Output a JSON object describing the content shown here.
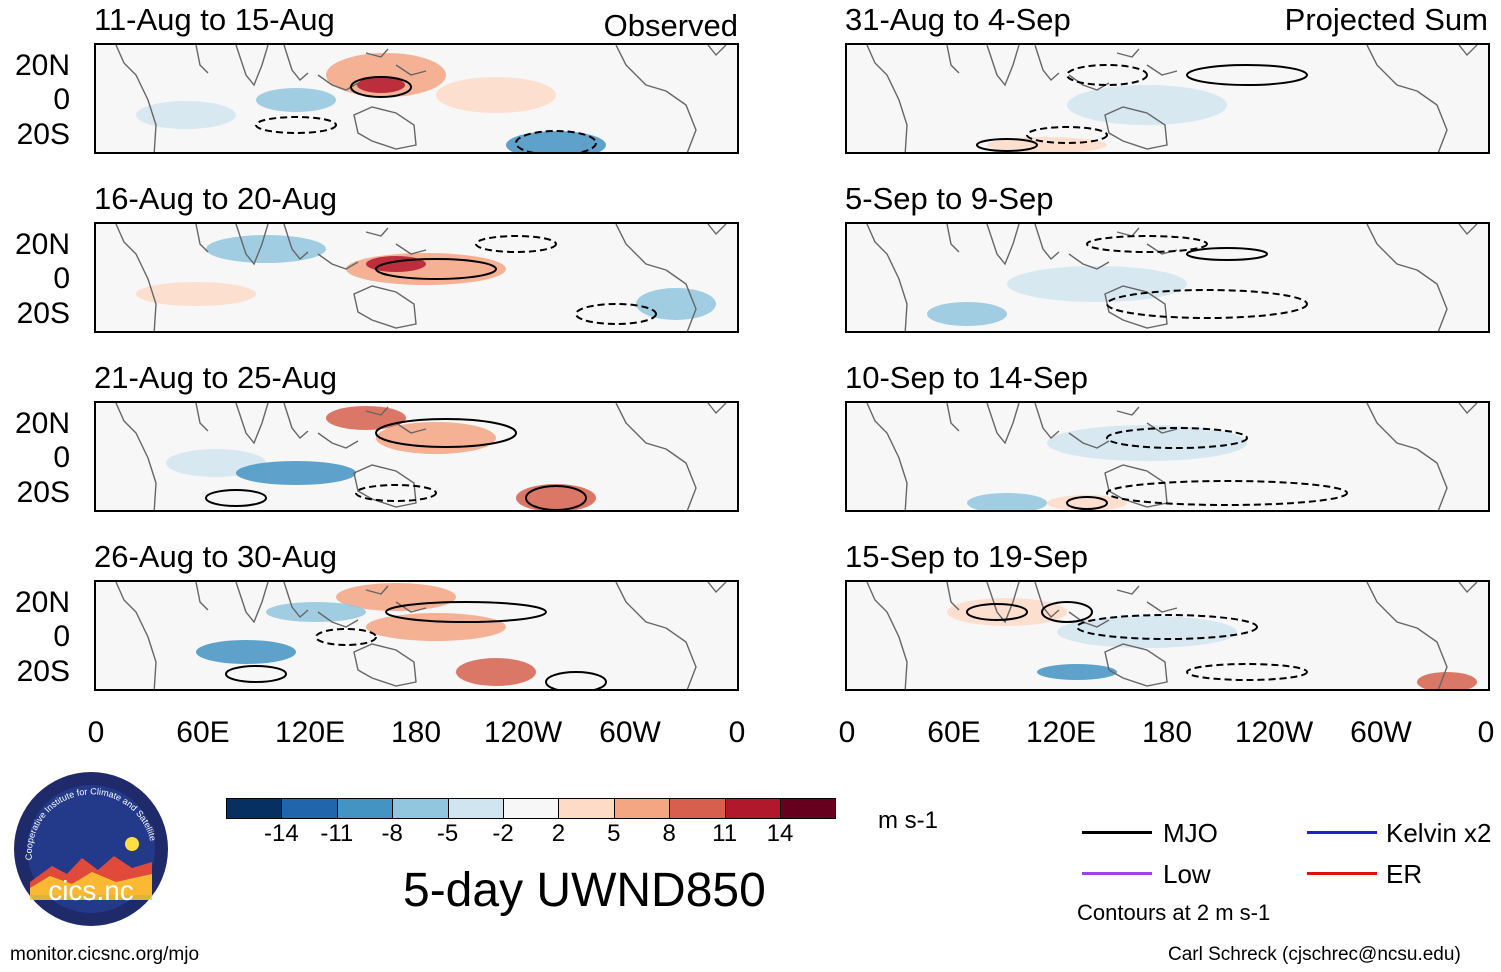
{
  "figure": {
    "title": "5-day UWND850",
    "units": "m s-1",
    "observed_label": "Observed",
    "projected_label": "Projected Sum",
    "contour_note": "Contours at 2 m s-1",
    "website": "monitor.cicsnc.org/mjo",
    "author": "Carl Schreck (cjschrec@ncsu.edu)"
  },
  "logo": {
    "name": "cics.nc",
    "ring_text": "Cooperative Institute for Climate and Satellites"
  },
  "panels": {
    "observed": [
      {
        "period": "11-Aug to 15-Aug"
      },
      {
        "period": "16-Aug to 20-Aug"
      },
      {
        "period": "21-Aug to 25-Aug"
      },
      {
        "period": "26-Aug to 30-Aug"
      }
    ],
    "projected": [
      {
        "period": "31-Aug to 4-Sep"
      },
      {
        "period": "5-Sep to 9-Sep"
      },
      {
        "period": "10-Sep to 14-Sep"
      },
      {
        "period": "15-Sep to 19-Sep"
      }
    ]
  },
  "axes": {
    "lat_labels": [
      "20N",
      "0",
      "20S"
    ],
    "lon_labels": [
      "0",
      "60E",
      "120E",
      "180",
      "120W",
      "60W",
      "0"
    ]
  },
  "colorbar": {
    "labels": [
      "-14",
      "-11",
      "-8",
      "-5",
      "-2",
      "2",
      "5",
      "8",
      "11",
      "14"
    ],
    "colors": [
      "#053061",
      "#2166ac",
      "#4393c3",
      "#92c5de",
      "#d1e5f0",
      "#f7f7f7",
      "#fddbc7",
      "#f4a582",
      "#d6604d",
      "#b2182b",
      "#67001f"
    ]
  },
  "legend": {
    "items": [
      {
        "label": "MJO",
        "color": "#000000"
      },
      {
        "label": "Kelvin x2",
        "color": "#1f1fd6"
      },
      {
        "label": "Low",
        "color": "#a040e0"
      },
      {
        "label": "ER",
        "color": "#e01010"
      }
    ]
  }
}
